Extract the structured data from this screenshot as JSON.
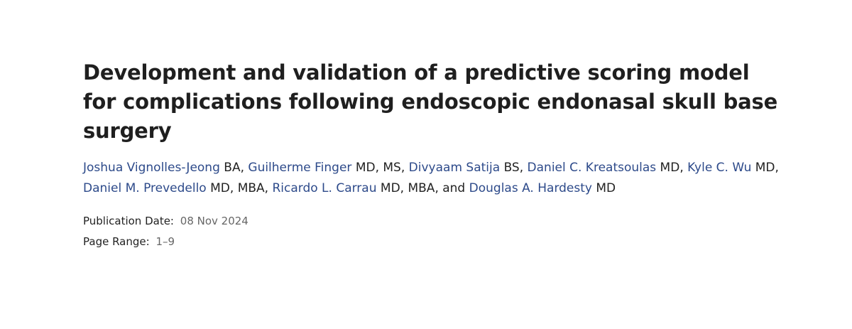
{
  "article": {
    "title": "Development and validation of a predictive scoring model for complications following endoscopic endonasal skull base surgery",
    "authors": [
      {
        "name": "Joshua Vignolles-Jeong",
        "degrees": "BA",
        "sep": ", "
      },
      {
        "name": "Guilherme Finger",
        "degrees": "MD, MS",
        "sep": ", "
      },
      {
        "name": "Divyaam Satija",
        "degrees": "BS",
        "sep": ", "
      },
      {
        "name": "Daniel C. Kreatsoulas",
        "degrees": "MD",
        "sep": ", "
      },
      {
        "name": "Kyle C. Wu",
        "degrees": "MD",
        "sep": ", "
      },
      {
        "name": "Daniel M. Prevedello",
        "degrees": "MD, MBA",
        "sep": ", "
      },
      {
        "name": "Ricardo L. Carrau",
        "degrees": "MD, MBA",
        "sep": ", and "
      },
      {
        "name": "Douglas A. Hardesty",
        "degrees": "MD",
        "sep": ""
      }
    ],
    "publication_date_label": "Publication Date:",
    "publication_date": "08 Nov 2024",
    "page_range_label": "Page Range:",
    "page_range": "1–9"
  },
  "colors": {
    "author_link": "#2d4a8a",
    "meta_value": "#666666"
  }
}
